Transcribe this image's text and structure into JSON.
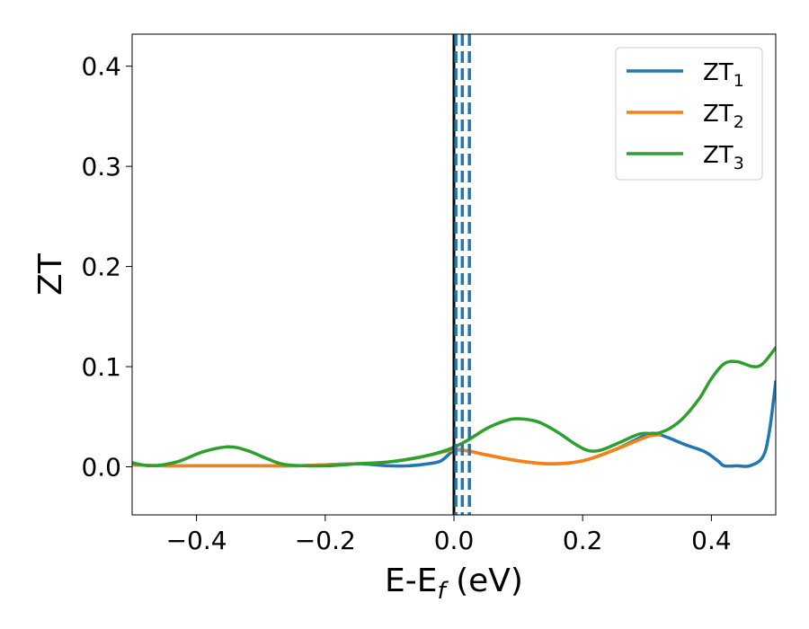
{
  "chart_data": {
    "type": "line",
    "title": "",
    "xlabel": {
      "main": "E-E",
      "sub": "f",
      "rest": " (eV)"
    },
    "ylabel": "ZT",
    "xlim": [
      -0.5,
      0.5
    ],
    "ylim": [
      -0.048,
      0.432
    ],
    "xticks": [
      -0.4,
      -0.2,
      0.0,
      0.2,
      0.4
    ],
    "xtick_labels": [
      "−0.4",
      "−0.2",
      "0.0",
      "0.2",
      "0.4"
    ],
    "yticks": [
      0.0,
      0.1,
      0.2,
      0.3,
      0.4
    ],
    "ytick_labels": [
      "0.0",
      "0.1",
      "0.2",
      "0.3",
      "0.4"
    ],
    "grid": false,
    "legend_position": "top-right",
    "vertical_lines": [
      {
        "x": 0.0,
        "style": "solid",
        "color": "#000000"
      },
      {
        "x": 0.003,
        "style": "dashed",
        "color": "#1f77b4"
      },
      {
        "x": 0.013,
        "style": "dashed",
        "color": "#1f77b4"
      },
      {
        "x": 0.024,
        "style": "dashed",
        "color": "#1f77b4"
      }
    ],
    "series": [
      {
        "name": "ZT",
        "sub": "1",
        "color": "#1f77b4",
        "points": [
          [
            -0.5,
            0.002
          ],
          [
            -0.45,
            0.001
          ],
          [
            -0.4,
            0.001
          ],
          [
            -0.35,
            0.001
          ],
          [
            -0.3,
            0.001
          ],
          [
            -0.25,
            0.001
          ],
          [
            -0.2,
            0.002
          ],
          [
            -0.15,
            0.003
          ],
          [
            -0.1,
            0.001
          ],
          [
            -0.07,
            0.001
          ],
          [
            -0.04,
            0.003
          ],
          [
            -0.02,
            0.006
          ],
          [
            0.0,
            0.016
          ],
          [
            0.02,
            0.016
          ],
          [
            0.05,
            0.012
          ],
          [
            0.1,
            0.006
          ],
          [
            0.15,
            0.003
          ],
          [
            0.2,
            0.006
          ],
          [
            0.25,
            0.017
          ],
          [
            0.3,
            0.032
          ],
          [
            0.32,
            0.032
          ],
          [
            0.36,
            0.022
          ],
          [
            0.39,
            0.015
          ],
          [
            0.41,
            0.006
          ],
          [
            0.42,
            0.001
          ],
          [
            0.44,
            0.001
          ],
          [
            0.46,
            0.001
          ],
          [
            0.48,
            0.01
          ],
          [
            0.49,
            0.035
          ],
          [
            0.5,
            0.085
          ]
        ]
      },
      {
        "name": "ZT",
        "sub": "2",
        "color": "#ff7f0e",
        "points": [
          [
            -0.5,
            0.002
          ],
          [
            -0.45,
            0.001
          ],
          [
            -0.4,
            0.001
          ],
          [
            -0.35,
            0.001
          ],
          [
            -0.3,
            0.001
          ],
          [
            -0.25,
            0.001
          ],
          [
            -0.2,
            0.002
          ],
          [
            -0.15,
            0.003
          ],
          [
            -0.1,
            0.005
          ],
          [
            -0.05,
            0.01
          ],
          [
            0.0,
            0.017
          ],
          [
            0.02,
            0.016
          ],
          [
            0.05,
            0.012
          ],
          [
            0.1,
            0.006
          ],
          [
            0.15,
            0.003
          ],
          [
            0.2,
            0.006
          ],
          [
            0.25,
            0.017
          ],
          [
            0.3,
            0.03
          ],
          [
            0.32,
            0.032
          ]
        ]
      },
      {
        "name": "ZT",
        "sub": "3",
        "color": "#2ca02c",
        "points": [
          [
            -0.5,
            0.004
          ],
          [
            -0.47,
            0.001
          ],
          [
            -0.43,
            0.005
          ],
          [
            -0.39,
            0.015
          ],
          [
            -0.35,
            0.02
          ],
          [
            -0.32,
            0.016
          ],
          [
            -0.29,
            0.008
          ],
          [
            -0.26,
            0.002
          ],
          [
            -0.2,
            0.001
          ],
          [
            -0.15,
            0.003
          ],
          [
            -0.1,
            0.005
          ],
          [
            -0.05,
            0.01
          ],
          [
            -0.01,
            0.017
          ],
          [
            0.02,
            0.026
          ],
          [
            0.05,
            0.038
          ],
          [
            0.08,
            0.046
          ],
          [
            0.1,
            0.048
          ],
          [
            0.13,
            0.045
          ],
          [
            0.16,
            0.035
          ],
          [
            0.19,
            0.022
          ],
          [
            0.21,
            0.016
          ],
          [
            0.23,
            0.017
          ],
          [
            0.26,
            0.025
          ],
          [
            0.29,
            0.033
          ],
          [
            0.32,
            0.034
          ],
          [
            0.35,
            0.045
          ],
          [
            0.38,
            0.067
          ],
          [
            0.4,
            0.088
          ],
          [
            0.42,
            0.103
          ],
          [
            0.44,
            0.105
          ],
          [
            0.465,
            0.1
          ],
          [
            0.48,
            0.103
          ],
          [
            0.5,
            0.119
          ]
        ]
      }
    ]
  }
}
